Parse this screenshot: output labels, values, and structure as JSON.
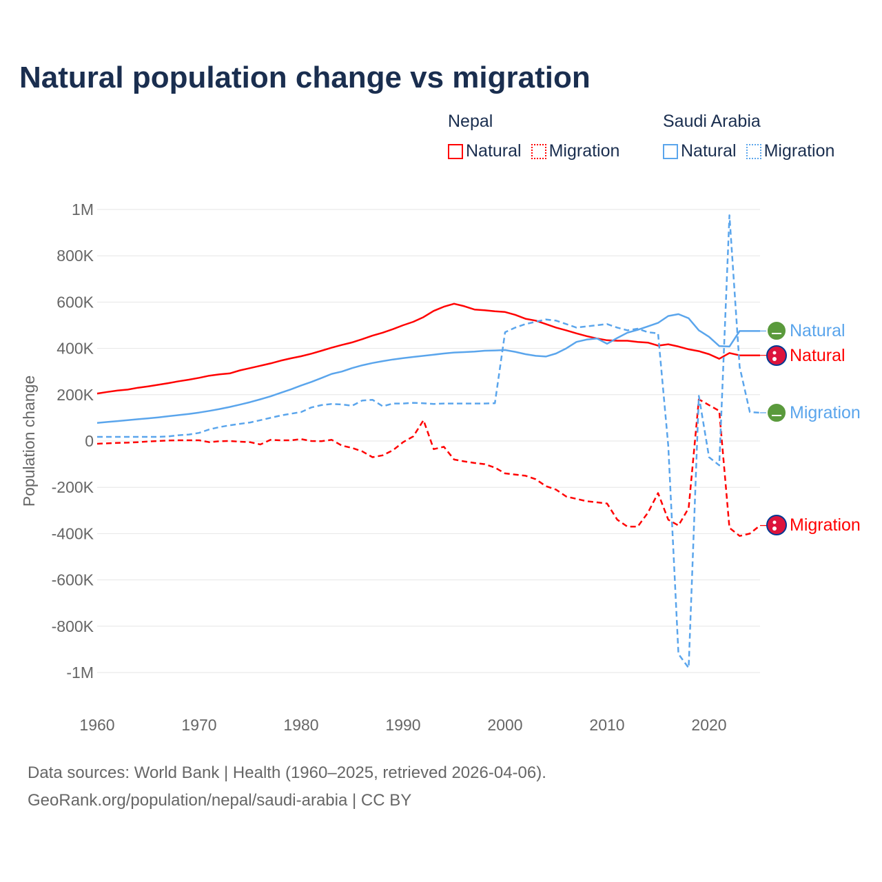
{
  "title": "Natural population change vs migration",
  "legend": {
    "groups": [
      {
        "name": "Nepal",
        "items": [
          {
            "label": "Natural",
            "style": "solid"
          },
          {
            "label": "Migration",
            "style": "dotted"
          }
        ],
        "color": "#ff0000"
      },
      {
        "name": "Saudi Arabia",
        "items": [
          {
            "label": "Natural",
            "style": "solid"
          },
          {
            "label": "Migration",
            "style": "dotted"
          }
        ],
        "color": "#5aa5ec"
      }
    ]
  },
  "footer": {
    "line1": "Data sources: World Bank | Health (1960–2025, retrieved 2026-04-06).",
    "line2": "GeoRank.org/population/nepal/saudi-arabia | CC BY"
  },
  "chart_data": {
    "type": "line",
    "title": "Natural population change vs migration",
    "xlabel": "",
    "ylabel": "Population change",
    "xlim": [
      1960,
      2025
    ],
    "ylim": [
      -1000000,
      1000000
    ],
    "x_start": 1960,
    "x_ticks": [
      1960,
      1970,
      1980,
      1990,
      2000,
      2010,
      2020
    ],
    "y_ticks": [
      {
        "v": 1000000,
        "label": "1M"
      },
      {
        "v": 800000,
        "label": "800K"
      },
      {
        "v": 600000,
        "label": "600K"
      },
      {
        "v": 400000,
        "label": "400K"
      },
      {
        "v": 200000,
        "label": "200K"
      },
      {
        "v": 0,
        "label": "0"
      },
      {
        "v": -200000,
        "label": "-200K"
      },
      {
        "v": -400000,
        "label": "-400K"
      },
      {
        "v": -600000,
        "label": "-600K"
      },
      {
        "v": -800000,
        "label": "-800K"
      },
      {
        "v": -1000000,
        "label": "-1M"
      }
    ],
    "grid": true,
    "series": [
      {
        "name": "Nepal Natural",
        "end_label": "Natural",
        "country": "Nepal",
        "color": "#ff0000",
        "dash": false,
        "unit": "thousands",
        "values": [
          205,
          212,
          218,
          222,
          230,
          236,
          243,
          250,
          258,
          265,
          273,
          282,
          288,
          292,
          305,
          315,
          325,
          335,
          347,
          357,
          366,
          377,
          390,
          403,
          415,
          426,
          440,
          455,
          468,
          483,
          500,
          515,
          535,
          562,
          580,
          593,
          582,
          568,
          565,
          560,
          557,
          545,
          528,
          520,
          505,
          490,
          478,
          465,
          453,
          443,
          435,
          433,
          433,
          428,
          425,
          412,
          418,
          408,
          396,
          388,
          375,
          355,
          380,
          370,
          370,
          370
        ]
      },
      {
        "name": "Nepal Migration",
        "end_label": "Migration",
        "country": "Nepal",
        "color": "#ff0000",
        "dash": true,
        "unit": "thousands",
        "values": [
          -12,
          -10,
          -8,
          -7,
          -5,
          -2,
          0,
          2,
          3,
          3,
          3,
          -5,
          -1,
          0,
          -3,
          -5,
          -15,
          5,
          3,
          3,
          8,
          0,
          -1,
          5,
          -20,
          -30,
          -45,
          -70,
          -62,
          -40,
          -5,
          20,
          90,
          -35,
          -25,
          -80,
          -88,
          -95,
          -100,
          -115,
          -140,
          -145,
          -150,
          -165,
          -195,
          -210,
          -240,
          -250,
          -260,
          -265,
          -270,
          -340,
          -370,
          -370,
          -310,
          -225,
          -340,
          -365,
          -290,
          180,
          155,
          130,
          -375,
          -410,
          -400,
          -365
        ]
      },
      {
        "name": "Saudi Arabia Natural",
        "end_label": "Natural",
        "country": "Saudi Arabia",
        "color": "#5aa5ec",
        "dash": false,
        "unit": "thousands",
        "values": [
          78,
          82,
          86,
          90,
          94,
          98,
          102,
          107,
          112,
          117,
          123,
          130,
          138,
          147,
          157,
          168,
          180,
          193,
          208,
          223,
          240,
          255,
          272,
          290,
          300,
          315,
          327,
          337,
          345,
          352,
          358,
          363,
          368,
          373,
          378,
          382,
          384,
          386,
          390,
          391,
          393,
          385,
          375,
          368,
          365,
          378,
          400,
          428,
          438,
          443,
          420,
          445,
          468,
          480,
          495,
          510,
          540,
          548,
          530,
          478,
          450,
          410,
          408,
          475,
          475,
          475
        ]
      },
      {
        "name": "Saudi Arabia Migration",
        "end_label": "Migration",
        "country": "Saudi Arabia",
        "color": "#5aa5ec",
        "dash": true,
        "unit": "thousands",
        "values": [
          18,
          18,
          18,
          18,
          18,
          18,
          18,
          20,
          25,
          28,
          35,
          50,
          60,
          68,
          74,
          80,
          90,
          100,
          110,
          118,
          125,
          145,
          155,
          160,
          158,
          152,
          175,
          178,
          150,
          162,
          162,
          165,
          163,
          160,
          162,
          162,
          162,
          162,
          162,
          163,
          470,
          490,
          505,
          515,
          525,
          520,
          505,
          490,
          495,
          500,
          505,
          490,
          478,
          485,
          470,
          465,
          -20,
          -920,
          -980,
          195,
          -70,
          -105,
          975,
          320,
          125,
          122
        ]
      }
    ]
  }
}
